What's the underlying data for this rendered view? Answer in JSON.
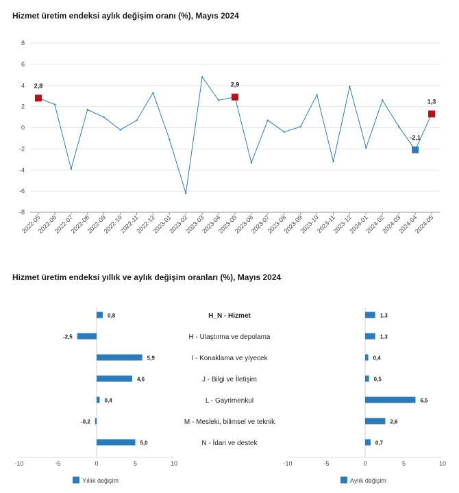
{
  "chart_data": [
    {
      "type": "line",
      "title": "Hizmet üretim endeksi aylık değişim oranı (%), Mayıs 2024",
      "x": [
        "2022-05",
        "2022-06",
        "2022-07",
        "2022-08",
        "2022-09",
        "2022-10",
        "2022-11",
        "2022-12",
        "2023-01",
        "2023-02",
        "2023-03",
        "2023-04",
        "2023-05",
        "2023-06",
        "2023-07",
        "2023-08",
        "2023-09",
        "2023-10",
        "2023-11",
        "2023-12",
        "2024-01",
        "2024-02",
        "2024-03",
        "2024-04",
        "2024-05"
      ],
      "y": [
        2.8,
        2.2,
        -3.9,
        1.7,
        1.0,
        -0.2,
        0.7,
        3.3,
        -1.1,
        -6.2,
        4.8,
        2.6,
        2.9,
        -3.3,
        0.7,
        -0.4,
        0.1,
        3.1,
        -3.2,
        3.9,
        -1.9,
        2.6,
        0.1,
        -2.1,
        1.3
      ],
      "ylim": [
        -8,
        8
      ],
      "yticks": [
        "-8",
        "-6",
        "-4",
        "-2",
        "0",
        "2",
        "4",
        "6",
        "8"
      ],
      "highlights": [
        {
          "index": 0,
          "label": "2,8",
          "color": "#b0141c"
        },
        {
          "index": 12,
          "label": "2,9",
          "color": "#b0141c"
        },
        {
          "index": 23,
          "label": "-2,1",
          "color": "#2e7ab8"
        },
        {
          "index": 24,
          "label": "1,3",
          "color": "#b0141c"
        }
      ],
      "line_color": "#2e7ab8",
      "grid": true
    },
    {
      "type": "bar",
      "orientation": "horizontal",
      "title": "Hizmet üretim endeksi yıllık ve aylık değişim oranları (%), Mayıs 2024",
      "categories": [
        "H_N - Hizmet",
        "H - Ulaştırma ve depolama",
        "I - Konaklama ve yiyecek",
        "J - Bilgi ve İletişim",
        "L - Gayrimenkul",
        "M - Mesleki, bilimsel ve teknik",
        "N - İdari ve destek"
      ],
      "bold_index": 0,
      "series": [
        {
          "name": "Yıllık değişim",
          "values": [
            0.8,
            -2.5,
            5.9,
            4.6,
            0.4,
            -0.2,
            5.0
          ],
          "labels": [
            "0,8",
            "-2,5",
            "5,9",
            "4,6",
            "0,4",
            "-0,2",
            "5,0"
          ]
        },
        {
          "name": "Aylık değişim",
          "values": [
            1.3,
            1.3,
            0.4,
            0.5,
            6.5,
            2.6,
            0.7
          ],
          "labels": [
            "1,3",
            "1,3",
            "0,4",
            "0,5",
            "6,5",
            "2,6",
            "0,7"
          ]
        }
      ],
      "xlim": [
        -10,
        10
      ],
      "xticks": [
        "-10",
        "-5",
        "0",
        "5",
        "10"
      ],
      "bar_color": "#2e7ab8"
    }
  ]
}
